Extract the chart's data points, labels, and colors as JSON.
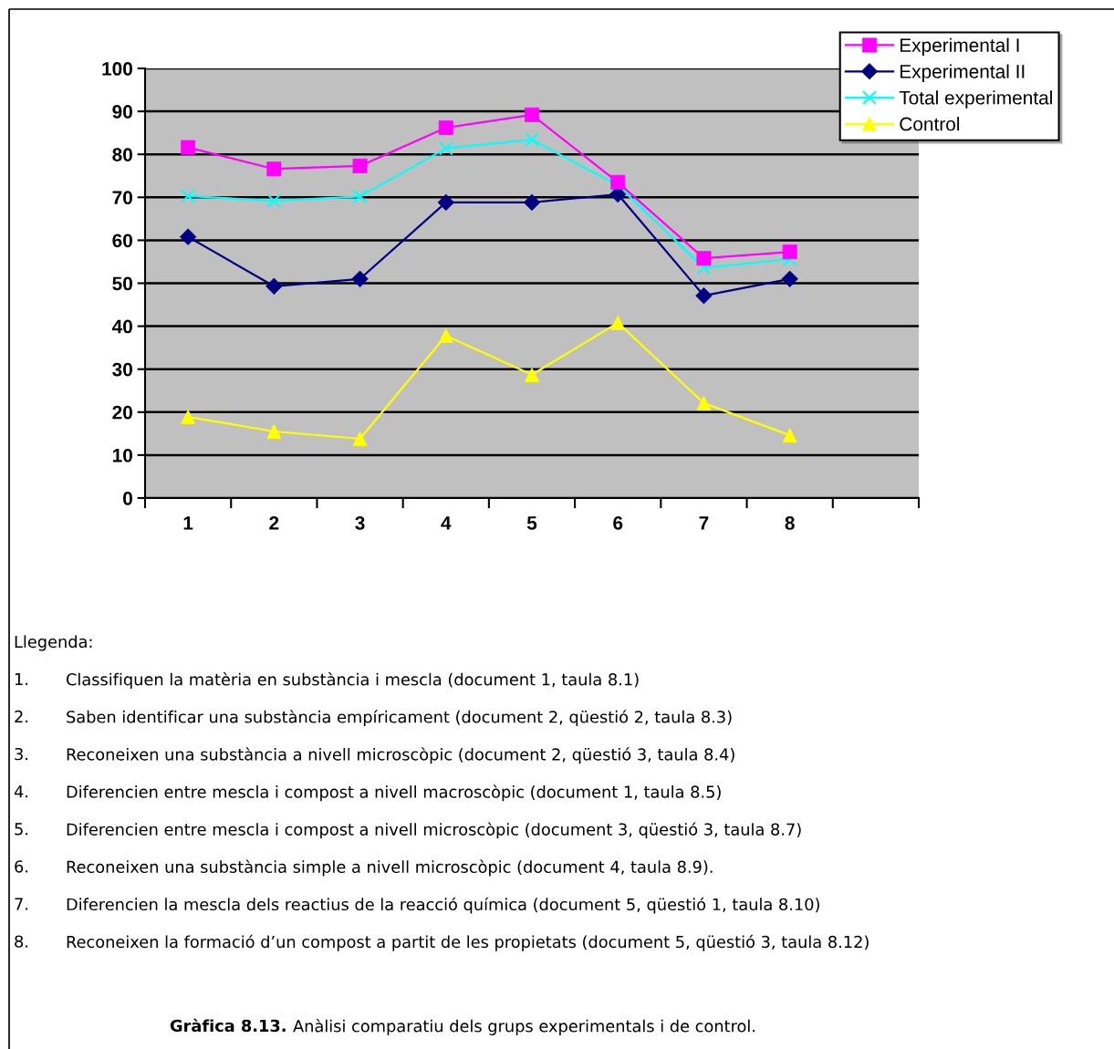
{
  "chart_data": {
    "type": "line",
    "categories": [
      "1",
      "2",
      "3",
      "4",
      "5",
      "6",
      "7",
      "8",
      null
    ],
    "series": [
      {
        "name": "Experimental I",
        "color": "#ff00ff",
        "marker": "square",
        "values": [
          81.6,
          76.6,
          77.3,
          86.2,
          89.2,
          73.5,
          55.8,
          57.3,
          null
        ]
      },
      {
        "name": "Experimental II",
        "color": "#000080",
        "marker": "diamond",
        "values": [
          60.8,
          49.3,
          51.0,
          68.8,
          68.8,
          70.7,
          47.1,
          51.0,
          null
        ]
      },
      {
        "name": "Total experimental",
        "color": "#00ffff",
        "marker": "cross",
        "values": [
          70.3,
          69.2,
          70.2,
          81.4,
          83.4,
          72.8,
          53.6,
          55.6,
          null
        ]
      },
      {
        "name": "Control",
        "color": "#ffff00",
        "marker": "triangle",
        "values": [
          18.9,
          15.5,
          13.8,
          37.8,
          28.7,
          40.8,
          22.1,
          14.6,
          null
        ]
      }
    ],
    "ylim": [
      0,
      100
    ],
    "yticks": [
      0,
      10,
      20,
      30,
      40,
      50,
      60,
      70,
      80,
      90,
      100
    ],
    "grid": "y",
    "legend": "top right",
    "line_style": "solid",
    "annotations": [
      "Llegenda:",
      "1. Classifiquen la matèria en substància i mescla (document 1, taula 8.1)",
      "2. Saben identificar una substància empíricament (document 2, qüestió 2, taula 8.3)",
      "3. Reconeixen una substància a nivell microscòpic (document 2, qüestió 3, taula 8.4)",
      "4. Diferencien entre mescla i compost a nivell macroscòpic (document 1, taula 8.5)",
      "5. Diferencien entre mescla i compost a nivell microscòpic (document 3, qüestió 3, taula 8.7)",
      "6. Reconeixen una substància simple a nivell microscòpic (document 4, taula 8.9).",
      "7. Diferencien la mescla dels reactius de la reacció química (document 5, qüestió 1, taula 8.10)",
      "8. Reconeixen la formació d’un compost a partit de les propietats (document 5, qüestió 3, taula 8.12)",
      "Gràfica 8.13.",
      "Anàlisi comparatiu dels grups experimentals i de control."
    ]
  }
}
